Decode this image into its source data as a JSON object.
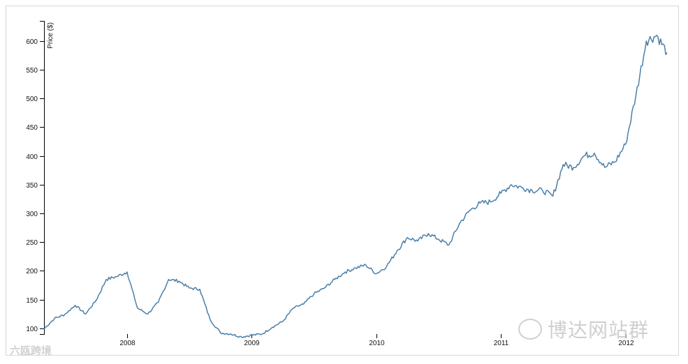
{
  "chart_data": {
    "type": "line",
    "title": "",
    "xlabel": "",
    "ylabel": "Price ($)",
    "xlim": [
      "2007-05",
      "2012-05"
    ],
    "ylim": [
      90,
      635
    ],
    "x_ticks": [
      "2008",
      "2009",
      "2010",
      "2011",
      "2012"
    ],
    "y_ticks": [
      100,
      150,
      200,
      250,
      300,
      350,
      400,
      450,
      500,
      550,
      600
    ],
    "grid": false,
    "legend": "none",
    "line_color": "#4a7fa8",
    "series": [
      {
        "x": [
          "2007-05",
          "2007-06",
          "2007-07",
          "2007-08",
          "2007-09",
          "2007-10",
          "2007-11",
          "2007-12",
          "2008-01",
          "2008-02",
          "2008-03",
          "2008-04",
          "2008-05",
          "2008-06",
          "2008-07",
          "2008-08",
          "2008-09",
          "2008-10",
          "2008-11",
          "2008-12",
          "2009-01",
          "2009-02",
          "2009-03",
          "2009-04",
          "2009-05",
          "2009-06",
          "2009-07",
          "2009-08",
          "2009-09",
          "2009-10",
          "2009-11",
          "2009-12",
          "2010-01",
          "2010-02",
          "2010-03",
          "2010-04",
          "2010-05",
          "2010-06",
          "2010-07",
          "2010-08",
          "2010-09",
          "2010-10",
          "2010-11",
          "2010-12",
          "2011-01",
          "2011-02",
          "2011-03",
          "2011-04",
          "2011-05",
          "2011-06",
          "2011-07",
          "2011-08",
          "2011-09",
          "2011-10",
          "2011-11",
          "2011-12",
          "2012-01",
          "2012-02",
          "2012-03",
          "2012-04",
          "2012-05"
        ],
        "values": [
          99,
          117,
          124,
          140,
          125,
          148,
          185,
          190,
          198,
          135,
          125,
          145,
          185,
          182,
          170,
          168,
          115,
          92,
          90,
          85,
          88,
          90,
          102,
          112,
          135,
          142,
          160,
          170,
          185,
          198,
          205,
          210,
          195,
          208,
          235,
          258,
          252,
          265,
          255,
          245,
          282,
          305,
          318,
          320,
          335,
          350,
          345,
          340,
          340,
          330,
          385,
          380,
          400,
          405,
          380,
          390,
          420,
          505,
          600,
          610,
          580
        ]
      }
    ]
  },
  "watermarks": {
    "right": "博达网站群",
    "left": "六瓯跨境"
  }
}
